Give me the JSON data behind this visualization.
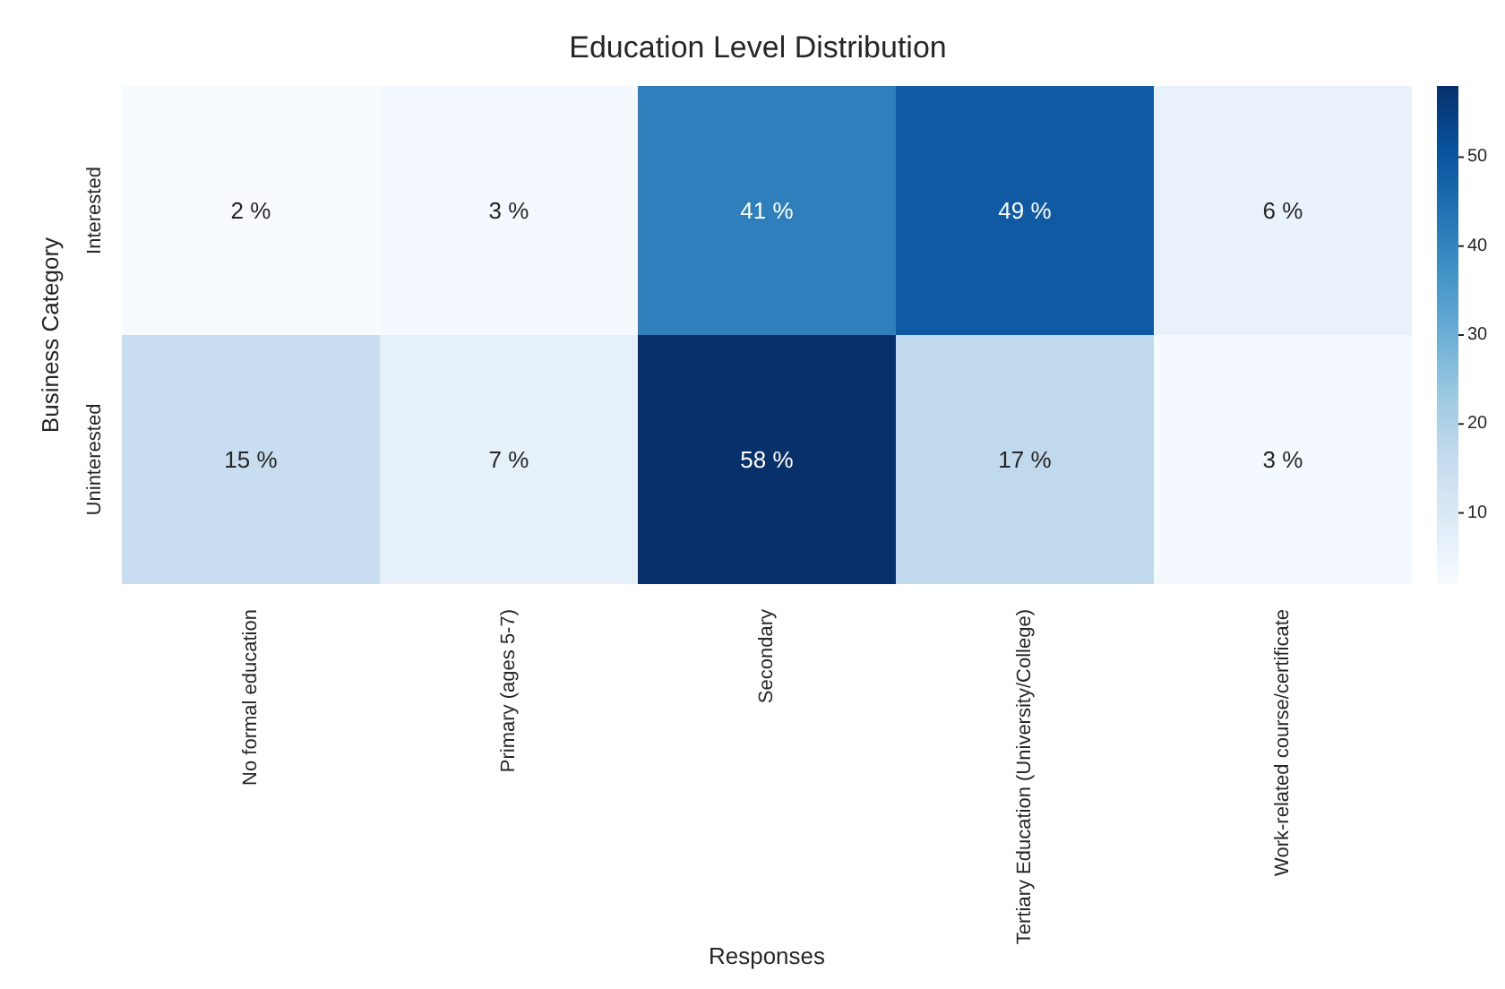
{
  "chart_data": {
    "type": "heatmap",
    "title": "Education Level Distribution",
    "xlabel": "Responses",
    "ylabel": "Business Category",
    "categories": [
      "No formal education",
      "Primary (ages 5-7)",
      "Secondary",
      "Tertiary Education (University/College)",
      "Work-related course/certificate"
    ],
    "y_categories": [
      "Interested",
      "Uninterested"
    ],
    "cells": [
      [
        2,
        3,
        41,
        49,
        6
      ],
      [
        15,
        7,
        58,
        17,
        3
      ]
    ],
    "cell_labels": [
      [
        "2 %",
        "3 %",
        "41 %",
        "49 %",
        "6 %"
      ],
      [
        "15 %",
        "7 %",
        "58 %",
        "17 %",
        "3 %"
      ]
    ],
    "clim": [
      2,
      58
    ],
    "cticks": [
      10,
      20,
      30,
      40,
      50
    ]
  }
}
